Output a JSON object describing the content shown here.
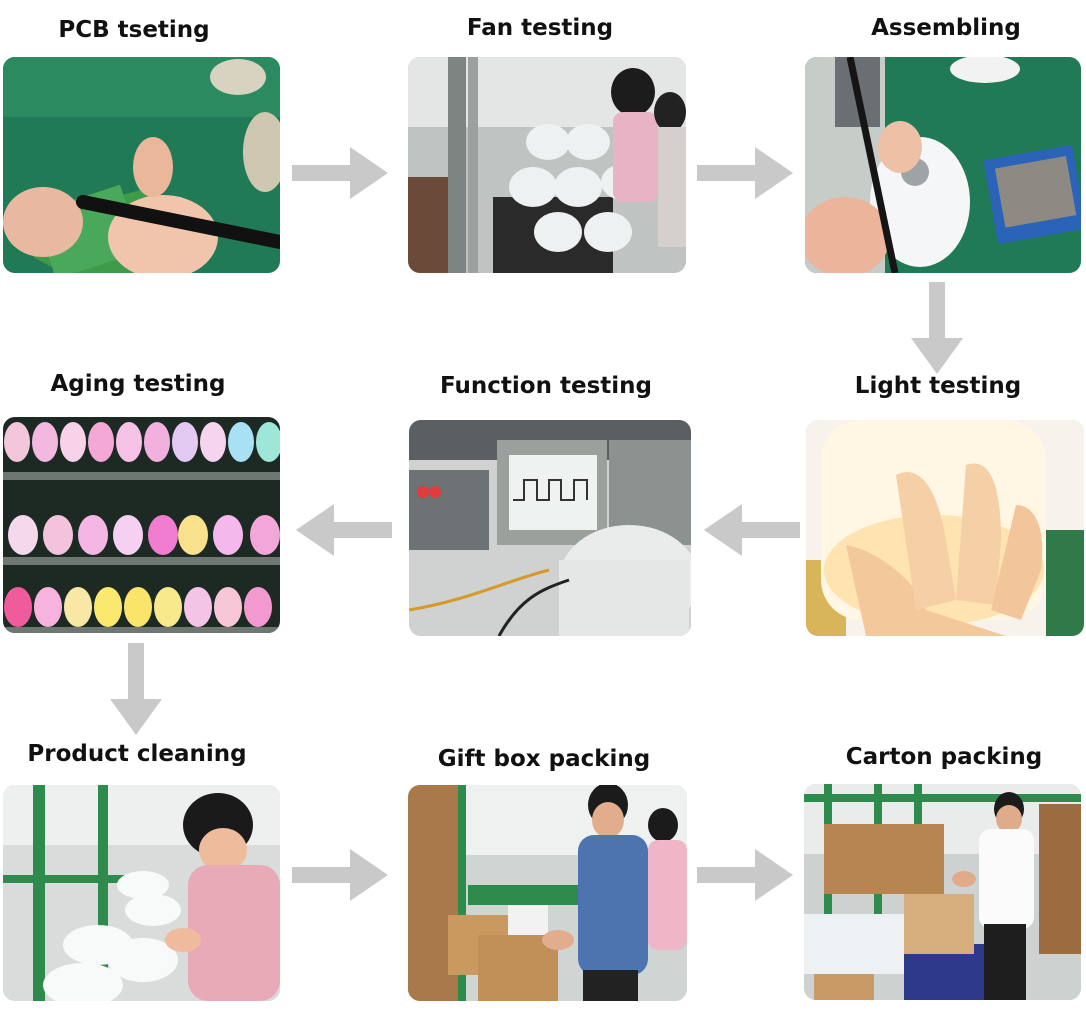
{
  "steps": [
    {
      "label": "PCB tseting",
      "photo": "pcb-soldering-photo"
    },
    {
      "label": "Fan testing",
      "photo": "fan-testing-line-photo"
    },
    {
      "label": "Assembling",
      "photo": "assembling-diffuser-photo"
    },
    {
      "label": "Light testing",
      "photo": "light-testing-hand-photo"
    },
    {
      "label": "Function testing",
      "photo": "oscilloscope-testing-photo"
    },
    {
      "label": "Aging testing",
      "photo": "aging-shelves-lamps-photo"
    },
    {
      "label": "Product cleaning",
      "photo": "product-cleaning-worker-photo"
    },
    {
      "label": "Gift box packing",
      "photo": "gift-box-packing-photo"
    },
    {
      "label": "Carton packing",
      "photo": "carton-packing-photo"
    }
  ],
  "arrow_color": "#c9c9c9"
}
